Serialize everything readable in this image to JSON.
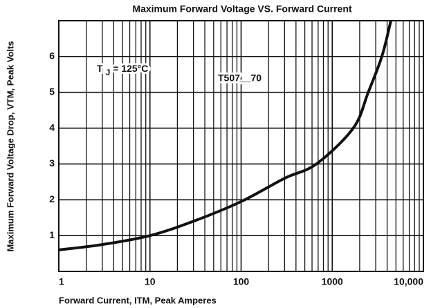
{
  "chart_data": {
    "type": "line",
    "title": "Maximum Forward Voltage VS. Forward Current",
    "x_label": "Forward Current, ITM, Peak Amperes",
    "y_label": "Maximum Forward Voltage Drop, VTM, Peak Volts",
    "annotations": [
      {
        "symbol": "T",
        "subscript": "J",
        "text": "= 125°C"
      },
      {
        "text": "T507__70"
      }
    ],
    "x": [
      1,
      3,
      10,
      30,
      100,
      300,
      670,
      1700,
      2480,
      3500,
      4400
    ],
    "values": [
      0.6,
      0.75,
      1.0,
      1.4,
      1.95,
      2.6,
      3.0,
      4.0,
      5.0,
      6.0,
      7.0
    ],
    "color": "#111111",
    "xscale": "log",
    "minor_grid": true,
    "grid": true,
    "xlim": [
      1,
      10000
    ],
    "xticks": [
      1,
      10,
      100,
      1000,
      {
        "value": 10000,
        "label": "10,000"
      }
    ],
    "ylim": [
      0,
      7
    ],
    "yticks": [
      1,
      2,
      3,
      4,
      5,
      6
    ]
  }
}
